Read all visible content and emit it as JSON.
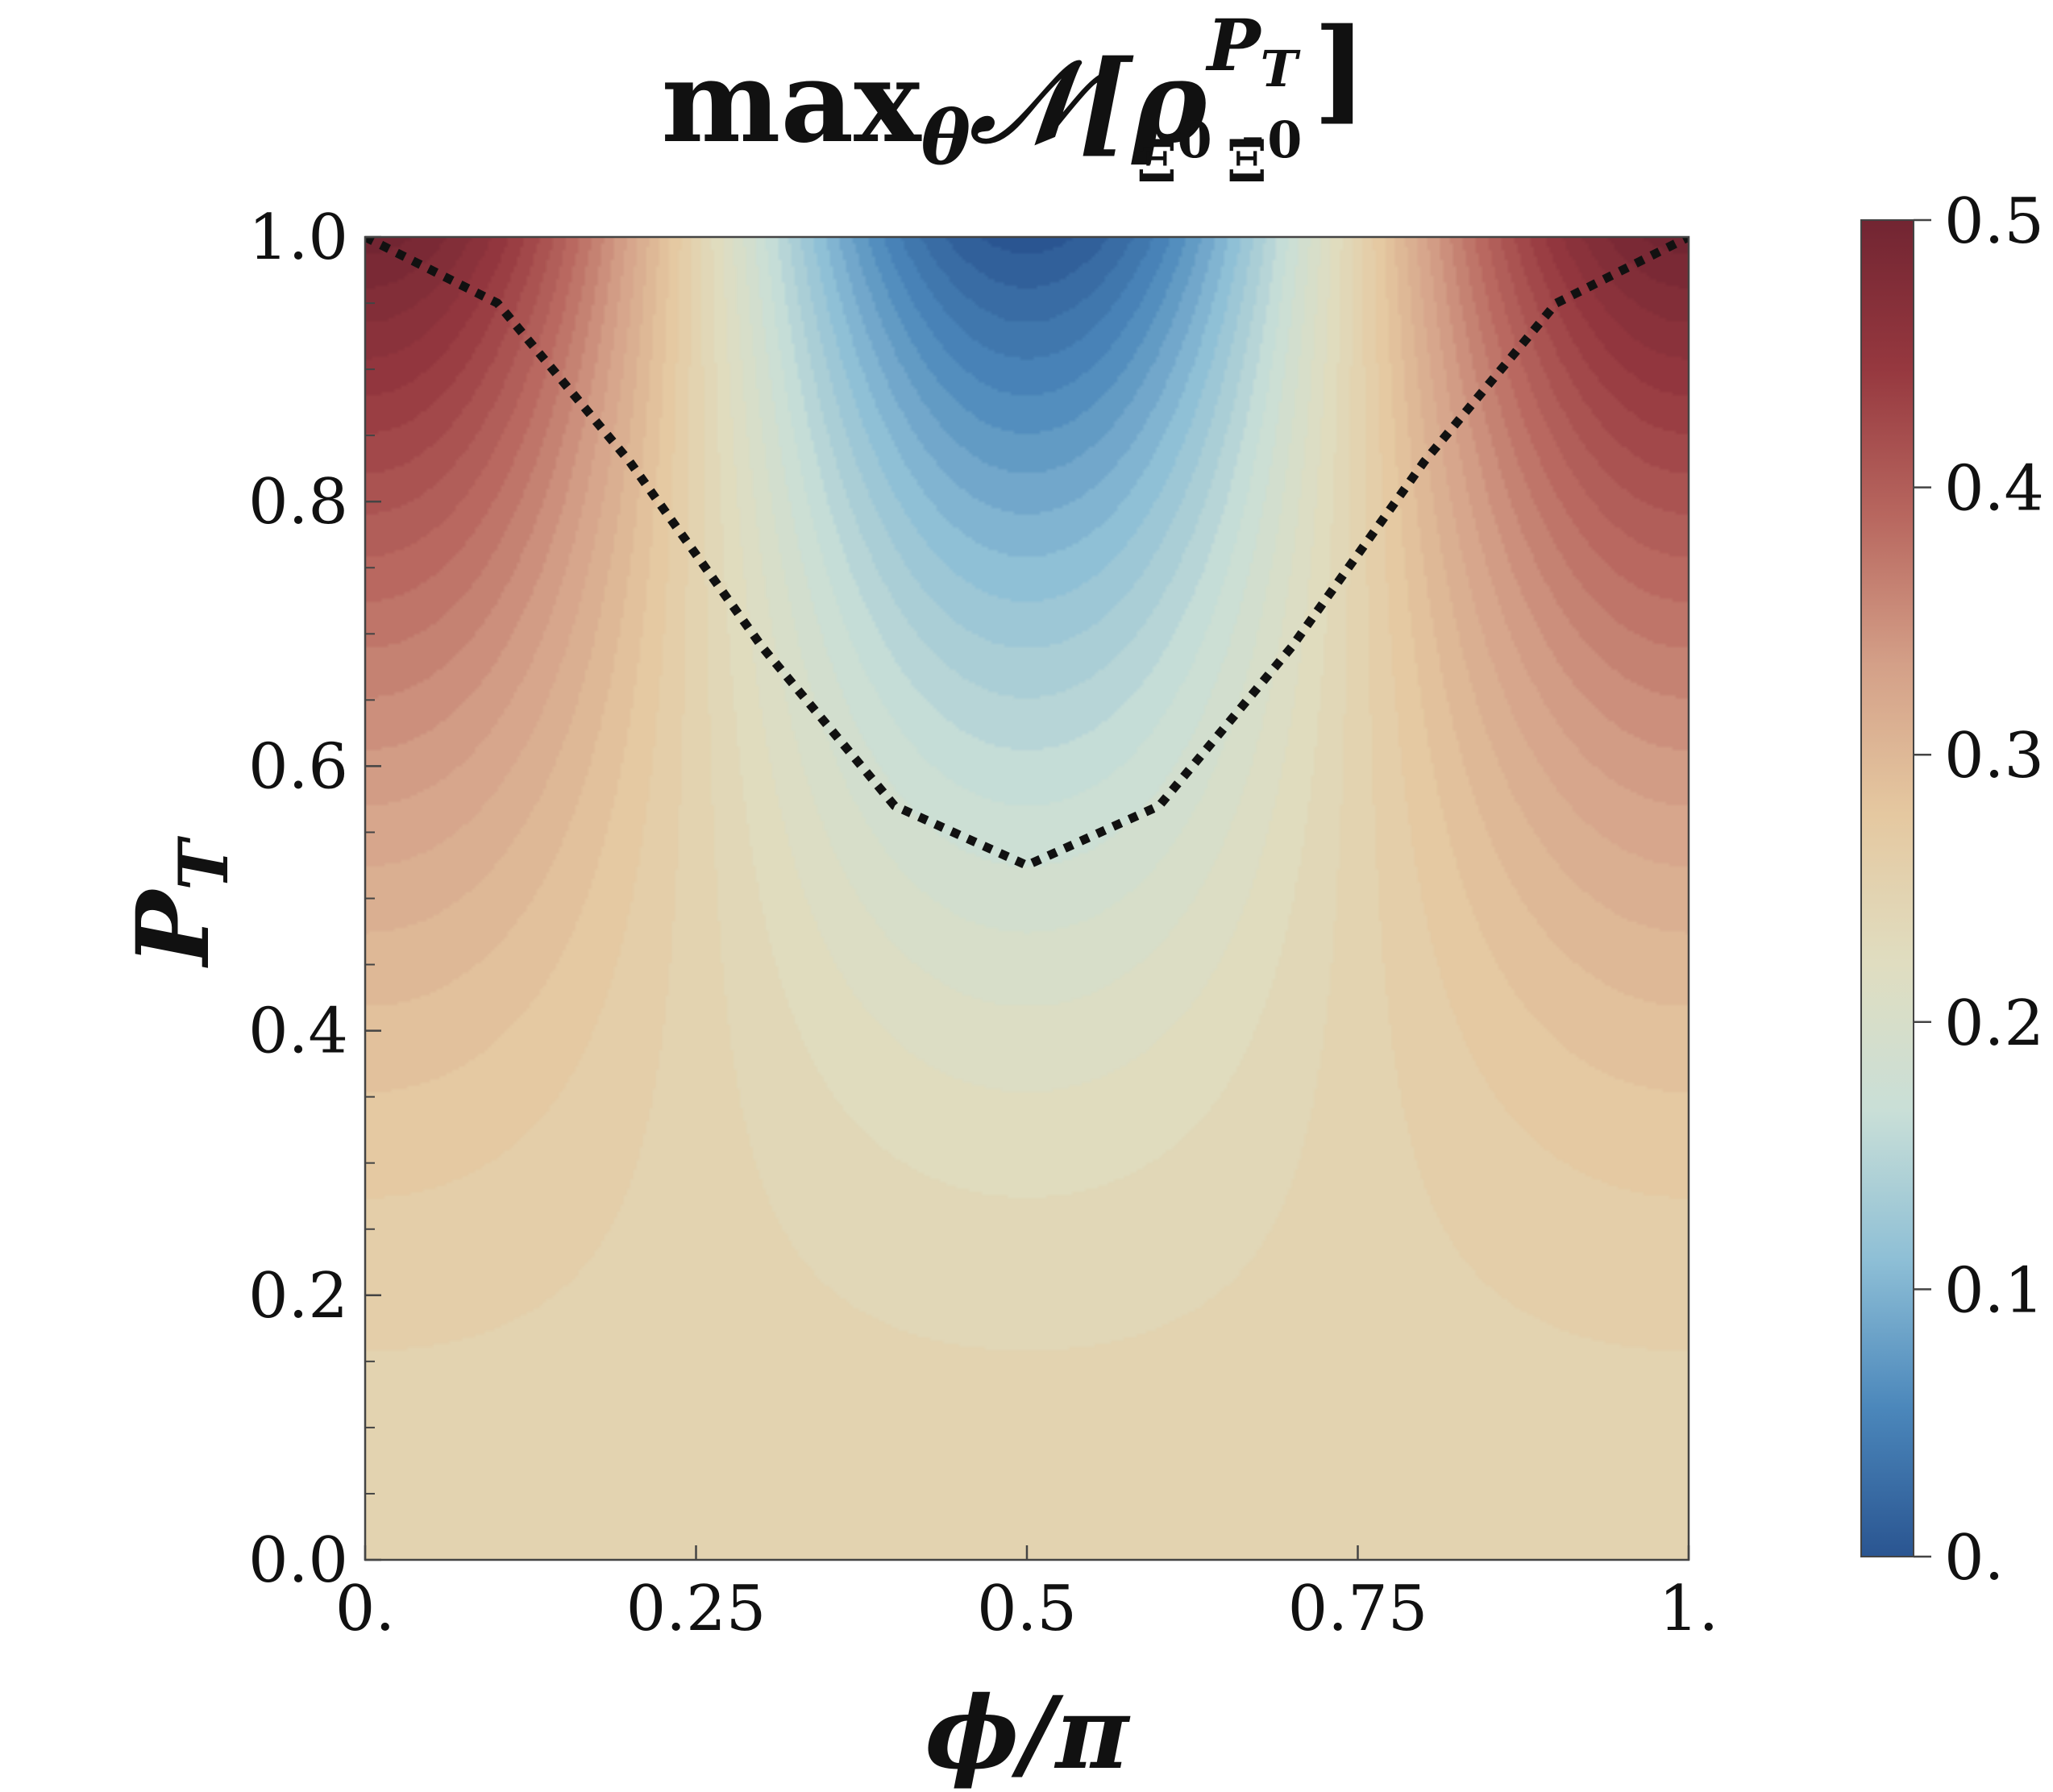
{
  "chart_data": {
    "type": "heatmap",
    "title": {
      "prefix": "max",
      "prefix_sub": "θ",
      "operator": "𝒩[ρ",
      "sup": "P",
      "sup_sub": "T",
      "sub1": "Ξ",
      "sub1_sup": "0",
      "sub2": "Ξ̄",
      "sub2_sup": "0",
      "suffix": "]"
    },
    "xlabel": "ϕ/π",
    "ylabel": {
      "main": "P",
      "sub": "T"
    },
    "xlim": [
      0,
      1
    ],
    "ylim": [
      0,
      1
    ],
    "x_ticks": [
      0,
      0.25,
      0.5,
      0.75,
      1
    ],
    "x_tick_labels": [
      "0.",
      "0.25",
      "0.5",
      "0.75",
      "1."
    ],
    "y_ticks": [
      0,
      0.2,
      0.4,
      0.6,
      0.8,
      1.0
    ],
    "y_tick_labels": [
      "0.0",
      "0.2",
      "0.4",
      "0.6",
      "0.8",
      "1.0"
    ],
    "z_description": "contour of max over θ of negativity vs φ/π (x) and P_T (y)",
    "model": {
      "base": 0.25,
      "coef": 0.25,
      "p_exponent": 2,
      "angle_factor": "cos(2πx)"
    },
    "contour_levels": 40,
    "curve": {
      "style": "dotted",
      "color": "#111111",
      "description": "boundary P_T(φ) with maximum 1.0 at φ/π=0 and 1, minimum ≈0.525 at φ/π=0.5",
      "points": [
        {
          "x": 0.0,
          "y": 1.0
        },
        {
          "x": 0.1,
          "y": 0.95
        },
        {
          "x": 0.2,
          "y": 0.83
        },
        {
          "x": 0.3,
          "y": 0.69
        },
        {
          "x": 0.4,
          "y": 0.57
        },
        {
          "x": 0.5,
          "y": 0.525
        },
        {
          "x": 0.6,
          "y": 0.57
        },
        {
          "x": 0.7,
          "y": 0.69
        },
        {
          "x": 0.8,
          "y": 0.83
        },
        {
          "x": 0.9,
          "y": 0.95
        },
        {
          "x": 1.0,
          "y": 1.0
        }
      ]
    },
    "colorbar": {
      "range": [
        0,
        0.5
      ],
      "ticks": [
        0,
        0.1,
        0.2,
        0.3,
        0.4,
        0.5
      ],
      "tick_labels": [
        "0.",
        "0.1",
        "0.2",
        "0.3",
        "0.4",
        "0.5"
      ],
      "colors": [
        "#2a5591",
        "#4b87bb",
        "#8ebfd6",
        "#c9dfd7",
        "#e0ddc0",
        "#e5c8a0",
        "#d4a088",
        "#b8675f",
        "#96383f",
        "#722532"
      ]
    },
    "grid": false
  }
}
